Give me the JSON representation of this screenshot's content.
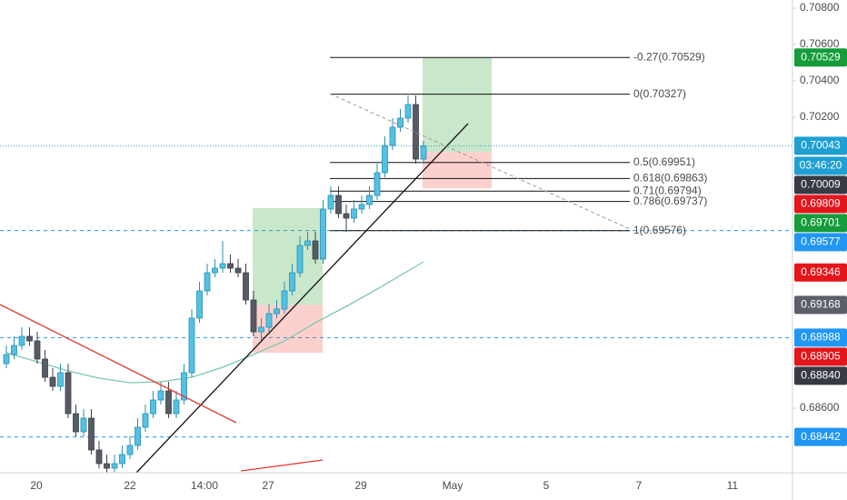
{
  "chart_data": {
    "type": "candlestick",
    "ylim": [
      0.68245,
      0.70845
    ],
    "yticks": [
      {
        "value": 0.708,
        "label": "0.70800"
      },
      {
        "value": 0.706,
        "label": "0.70600"
      },
      {
        "value": 0.704,
        "label": "0.70400"
      },
      {
        "value": 0.702,
        "label": "0.70200"
      },
      {
        "value": 0.686,
        "label": "0.68600"
      }
    ],
    "x_labels": [
      "20",
      "22",
      "14:00",
      "27",
      "29",
      "May",
      "5",
      "7",
      "11"
    ],
    "up_color": "#53c1e3",
    "down_color": "#565b66",
    "open": [
      0.68845,
      0.68895,
      0.68945,
      0.68995,
      0.6897,
      0.6887,
      0.6877,
      0.6872,
      0.68795,
      0.6857,
      0.6847,
      0.68545,
      0.6837,
      0.68295,
      0.6827,
      0.68295,
      0.68345,
      0.68395,
      0.68495,
      0.6857,
      0.68645,
      0.68695,
      0.6857,
      0.68645,
      0.68795,
      0.69095,
      0.69245,
      0.69345,
      0.6937,
      0.69395,
      0.6937,
      0.69345,
      0.69195,
      0.6902,
      0.69045,
      0.6912,
      0.69145,
      0.69245,
      0.69345,
      0.69495,
      0.6952,
      0.6942,
      0.69695,
      0.6977,
      0.6967,
      0.69645,
      0.69695,
      0.6972,
      0.6977,
      0.69895,
      0.70045,
      0.70145,
      0.70195,
      0.7027,
      0.6997
    ],
    "high": [
      0.68945,
      0.68995,
      0.69045,
      0.69045,
      0.6902,
      0.6892,
      0.6882,
      0.68845,
      0.68845,
      0.6862,
      0.68595,
      0.68595,
      0.6842,
      0.68345,
      0.68345,
      0.68395,
      0.68445,
      0.68545,
      0.6862,
      0.68695,
      0.68745,
      0.68745,
      0.68695,
      0.68845,
      0.69145,
      0.69295,
      0.69395,
      0.6942,
      0.6952,
      0.69445,
      0.6942,
      0.69395,
      0.69245,
      0.69095,
      0.6917,
      0.69195,
      0.69295,
      0.69395,
      0.69545,
      0.6957,
      0.6957,
      0.69745,
      0.6982,
      0.6982,
      0.6972,
      0.69745,
      0.6977,
      0.6982,
      0.69945,
      0.70095,
      0.70195,
      0.70245,
      0.7032,
      0.7032,
      0.7007
    ],
    "low": [
      0.6882,
      0.6887,
      0.6892,
      0.68945,
      0.68845,
      0.68745,
      0.68695,
      0.68695,
      0.68545,
      0.68445,
      0.68445,
      0.68345,
      0.6827,
      0.68245,
      0.68245,
      0.6827,
      0.6832,
      0.6837,
      0.6847,
      0.68545,
      0.6862,
      0.68545,
      0.68545,
      0.6862,
      0.6877,
      0.6907,
      0.6922,
      0.6932,
      0.69345,
      0.69345,
      0.6932,
      0.6917,
      0.68995,
      0.6897,
      0.6902,
      0.69095,
      0.6912,
      0.6922,
      0.6932,
      0.6947,
      0.69395,
      0.69395,
      0.6967,
      0.69645,
      0.6957,
      0.6962,
      0.6967,
      0.69695,
      0.69745,
      0.6987,
      0.7002,
      0.7012,
      0.7017,
      0.69945,
      0.69945
    ],
    "close": [
      0.68895,
      0.68945,
      0.68995,
      0.6897,
      0.6887,
      0.6877,
      0.6872,
      0.68795,
      0.6857,
      0.6847,
      0.68545,
      0.6837,
      0.68295,
      0.6827,
      0.68295,
      0.68345,
      0.68395,
      0.68495,
      0.6857,
      0.68645,
      0.68695,
      0.6857,
      0.68645,
      0.68795,
      0.69095,
      0.69245,
      0.69345,
      0.6937,
      0.69395,
      0.6937,
      0.69345,
      0.69195,
      0.6902,
      0.69045,
      0.6912,
      0.69145,
      0.69245,
      0.69345,
      0.69495,
      0.6952,
      0.6942,
      0.69695,
      0.6977,
      0.6967,
      0.69645,
      0.69695,
      0.6972,
      0.6977,
      0.69895,
      0.70045,
      0.70145,
      0.70195,
      0.7027,
      0.6997,
      0.70043
    ],
    "moving_average": {
      "color": "#7cc7b0",
      "x": [
        0,
        4,
        8,
        12,
        16,
        20,
        24,
        28,
        32,
        36,
        40,
        44,
        48,
        52,
        54
      ],
      "values": [
        0.68905,
        0.68855,
        0.68805,
        0.68765,
        0.6874,
        0.68745,
        0.6877,
        0.68825,
        0.68895,
        0.6897,
        0.6907,
        0.6916,
        0.69255,
        0.69355,
        0.69405
      ]
    },
    "fib_levels": [
      {
        "value": 0.70529,
        "label": "-0.27(0.70529)"
      },
      {
        "value": 0.70327,
        "label": "0(0.70327)"
      },
      {
        "value": 0.69951,
        "label": "0.5(0.69951)"
      },
      {
        "value": 0.69863,
        "label": "0.618(0.69863)"
      },
      {
        "value": 0.69794,
        "label": "0.71(0.69794)"
      },
      {
        "value": 0.69737,
        "label": "0.786(0.69737)"
      },
      {
        "value": 0.69576,
        "label": "1(0.69576)"
      }
    ],
    "positions": [
      {
        "target": 0.69701,
        "entry": 0.69168,
        "stop": 0.68905
      },
      {
        "target": 0.70529,
        "entry": 0.70009,
        "stop": 0.69809
      }
    ],
    "countdown": "03:46:20",
    "price_labels": [
      {
        "price": 0.70529,
        "color": "#169c3a"
      },
      {
        "price": 0.70043,
        "color": "#1f9fd2",
        "line": "dotted",
        "current": true
      },
      {
        "price": 0.70009,
        "color": "#363a45"
      },
      {
        "price": 0.69809,
        "color": "#e4161b"
      },
      {
        "price": 0.69701,
        "color": "#169c3a"
      },
      {
        "price": 0.69577,
        "color": "#2196f3",
        "line": "dashed"
      },
      {
        "price": 0.69346,
        "color": "#e4161b"
      },
      {
        "price": 0.69168,
        "color": "#5b5f6a"
      },
      {
        "price": 0.68988,
        "color": "#2196f3",
        "line": "dashed"
      },
      {
        "price": 0.68905,
        "color": "#e4161b"
      },
      {
        "price": {
          "value": 0.6884,
          "label": "0.68840"
        },
        "color": "#363a45"
      },
      {
        "price": 0.68442,
        "color": "#2196f3",
        "line": "dashed"
      }
    ]
  }
}
